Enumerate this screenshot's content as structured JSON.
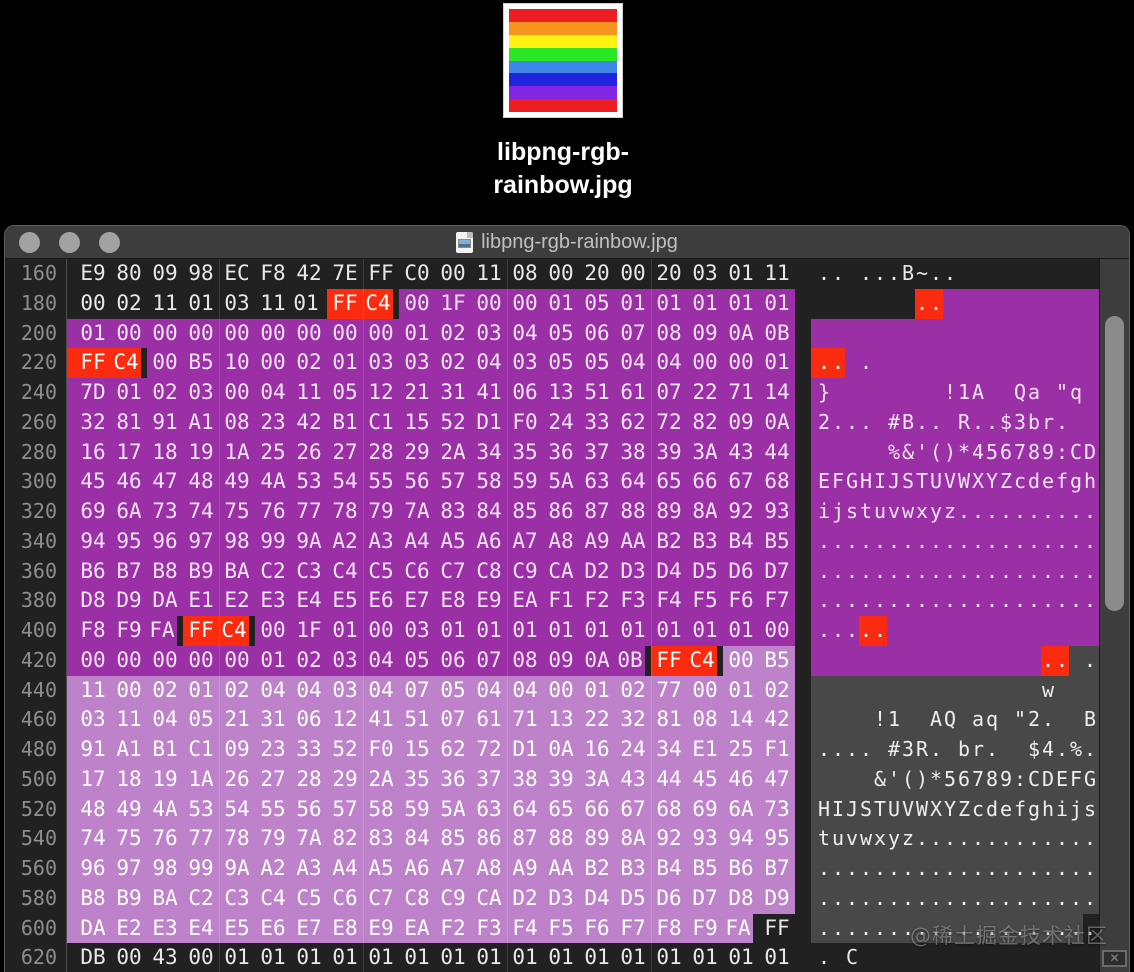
{
  "desktop": {
    "filename_line1": "libpng-rgb-",
    "filename_line2": "rainbow.jpg",
    "rainbow_colors": [
      "#ee1c23",
      "#f7941d",
      "#fff212",
      "#2ae826",
      "#3d87e9",
      "#2025dd",
      "#8127e3",
      "#ee1c23"
    ]
  },
  "window": {
    "title": "libpng-rgb-rainbow.jpg",
    "watermark": "@稀土掘金技术社区",
    "rows": [
      {
        "offset": "160",
        "hex": "E9 80 09 98 EC F8 42 7E FF C0 00 11 08 00 20 00 20 03 01 11",
        "hexc": "dddddddddddddddddddd",
        "ascii": ".. ...B~..          ",
        "asciic": "dddddddddddddddddddd"
      },
      {
        "offset": "180",
        "hex": "00 02 11 01 03 11 01 FF C4 00 1F 00 00 01 05 01 01 01 01 01",
        "hexc": "dddddddrrppppppppppp",
        "ascii": "       ..           ",
        "asciic": "dddddddrrppppppppppp"
      },
      {
        "offset": "200",
        "hex": "01 00 00 00 00 00 00 00 00 01 02 03 04 05 06 07 08 09 0A 0B",
        "hexc": "pppppppppppppppppppp",
        "ascii": "                    ",
        "asciic": "pppppppppppppppppppp"
      },
      {
        "offset": "220",
        "hex": "FF C4 00 B5 10 00 02 01 03 03 02 04 03 05 05 04 04 00 00 01",
        "hexc": "rrpppppppppppppppppp",
        "ascii": ".. .                ",
        "asciic": "rrpppppppppppppppppp"
      },
      {
        "offset": "240",
        "hex": "7D 01 02 03 00 04 11 05 12 21 31 41 06 13 51 61 07 22 71 14",
        "hexc": "pppppppppppppppppppp",
        "ascii": "}        !1A  Qa \"q ",
        "asciic": "pppppppppppppppppppp"
      },
      {
        "offset": "260",
        "hex": "32 81 91 A1 08 23 42 B1 C1 15 52 D1 F0 24 33 62 72 82 09 0A",
        "hexc": "pppppppppppppppppppp",
        "ascii": "2... #B.. R..$3br.  ",
        "asciic": "pppppppppppppppppppp"
      },
      {
        "offset": "280",
        "hex": "16 17 18 19 1A 25 26 27 28 29 2A 34 35 36 37 38 39 3A 43 44",
        "hexc": "pppppppppppppppppppp",
        "ascii": "     %&'()*456789:CD",
        "asciic": "pppppppppppppppppppp"
      },
      {
        "offset": "300",
        "hex": "45 46 47 48 49 4A 53 54 55 56 57 58 59 5A 63 64 65 66 67 68",
        "hexc": "pppppppppppppppppppp",
        "ascii": "EFGHIJSTUVWXYZcdefgh",
        "asciic": "pppppppppppppppppppp"
      },
      {
        "offset": "320",
        "hex": "69 6A 73 74 75 76 77 78 79 7A 83 84 85 86 87 88 89 8A 92 93",
        "hexc": "pppppppppppppppppppp",
        "ascii": "ijstuvwxyz..........",
        "asciic": "pppppppppppppppppppp"
      },
      {
        "offset": "340",
        "hex": "94 95 96 97 98 99 9A A2 A3 A4 A5 A6 A7 A8 A9 AA B2 B3 B4 B5",
        "hexc": "pppppppppppppppppppp",
        "ascii": "....................",
        "asciic": "pppppppppppppppppppp"
      },
      {
        "offset": "360",
        "hex": "B6 B7 B8 B9 BA C2 C3 C4 C5 C6 C7 C8 C9 CA D2 D3 D4 D5 D6 D7",
        "hexc": "pppppppppppppppppppp",
        "ascii": "....................",
        "asciic": "pppppppppppppppppppp"
      },
      {
        "offset": "380",
        "hex": "D8 D9 DA E1 E2 E3 E4 E5 E6 E7 E8 E9 EA F1 F2 F3 F4 F5 F6 F7",
        "hexc": "pppppppppppppppppppp",
        "ascii": "....................",
        "asciic": "pppppppppppppppppppp"
      },
      {
        "offset": "400",
        "hex": "F8 F9 FA FF C4 00 1F 01 00 03 01 01 01 01 01 01 01 01 01 00",
        "hexc": "ppprrppppppppppppppp",
        "ascii": ".....               ",
        "asciic": "ppprrppppppppppppppp"
      },
      {
        "offset": "420",
        "hex": "00 00 00 00 00 01 02 03 04 05 06 07 08 09 0A 0B FF C4 00 B5",
        "hexc": "pppppppppppppppprrll",
        "ascii": "                .. .",
        "asciic": "pppppppppppppppprrgg"
      },
      {
        "offset": "440",
        "hex": "11 00 02 01 02 04 04 03 04 07 05 04 04 00 01 02 77 00 01 02",
        "hexc": "llllllllllllllllllll",
        "ascii": "                w   ",
        "asciic": "gggggggggggggggggggg"
      },
      {
        "offset": "460",
        "hex": "03 11 04 05 21 31 06 12 41 51 07 61 71 13 22 32 81 08 14 42",
        "hexc": "llllllllllllllllllll",
        "ascii": "    !1  AQ aq \"2.  B",
        "asciic": "gggggggggggggggggggg"
      },
      {
        "offset": "480",
        "hex": "91 A1 B1 C1 09 23 33 52 F0 15 62 72 D1 0A 16 24 34 E1 25 F1",
        "hexc": "llllllllllllllllllll",
        "ascii": ".... #3R. br.  $4.%.",
        "asciic": "gggggggggggggggggggg"
      },
      {
        "offset": "500",
        "hex": "17 18 19 1A 26 27 28 29 2A 35 36 37 38 39 3A 43 44 45 46 47",
        "hexc": "llllllllllllllllllll",
        "ascii": "    &'()*56789:CDEFG",
        "asciic": "gggggggggggggggggggg"
      },
      {
        "offset": "520",
        "hex": "48 49 4A 53 54 55 56 57 58 59 5A 63 64 65 66 67 68 69 6A 73",
        "hexc": "llllllllllllllllllll",
        "ascii": "HIJSTUVWXYZcdefghijs",
        "asciic": "gggggggggggggggggggg"
      },
      {
        "offset": "540",
        "hex": "74 75 76 77 78 79 7A 82 83 84 85 86 87 88 89 8A 92 93 94 95",
        "hexc": "llllllllllllllllllll",
        "ascii": "tuvwxyz.............",
        "asciic": "gggggggggggggggggggg"
      },
      {
        "offset": "560",
        "hex": "96 97 98 99 9A A2 A3 A4 A5 A6 A7 A8 A9 AA B2 B3 B4 B5 B6 B7",
        "hexc": "llllllllllllllllllll",
        "ascii": "....................",
        "asciic": "gggggggggggggggggggg"
      },
      {
        "offset": "580",
        "hex": "B8 B9 BA C2 C3 C4 C5 C6 C7 C8 C9 CA D2 D3 D4 D5 D6 D7 D8 D9",
        "hexc": "llllllllllllllllllll",
        "ascii": "....................",
        "asciic": "gggggggggggggggggggg"
      },
      {
        "offset": "600",
        "hex": "DA E2 E3 E4 E5 E6 E7 E8 E9 EA F2 F3 F4 F5 F6 F7 F8 F9 FA FF",
        "hexc": "llllllllllllllllllld",
        "ascii": "....................",
        "asciic": "gggggggggggggggggggd"
      },
      {
        "offset": "620",
        "hex": "DB 00 43 00 01 01 01 01 01 01 01 01 01 01 01 01 01 01 01 01",
        "hexc": "dddddddddddddddddddd",
        "ascii": ". C                 ",
        "asciic": "dddddddddddddddddddd"
      }
    ]
  },
  "colors": {
    "purple": "#9a2fa6",
    "light_purple": "#bd82c9",
    "red": "#fb2b10",
    "gray_sel": "#484848",
    "window_bg": "#212121",
    "titlebar_bg": "#3d3d3d",
    "offset_text": "#8e8e8e",
    "title_text": "#c0c0c0"
  }
}
